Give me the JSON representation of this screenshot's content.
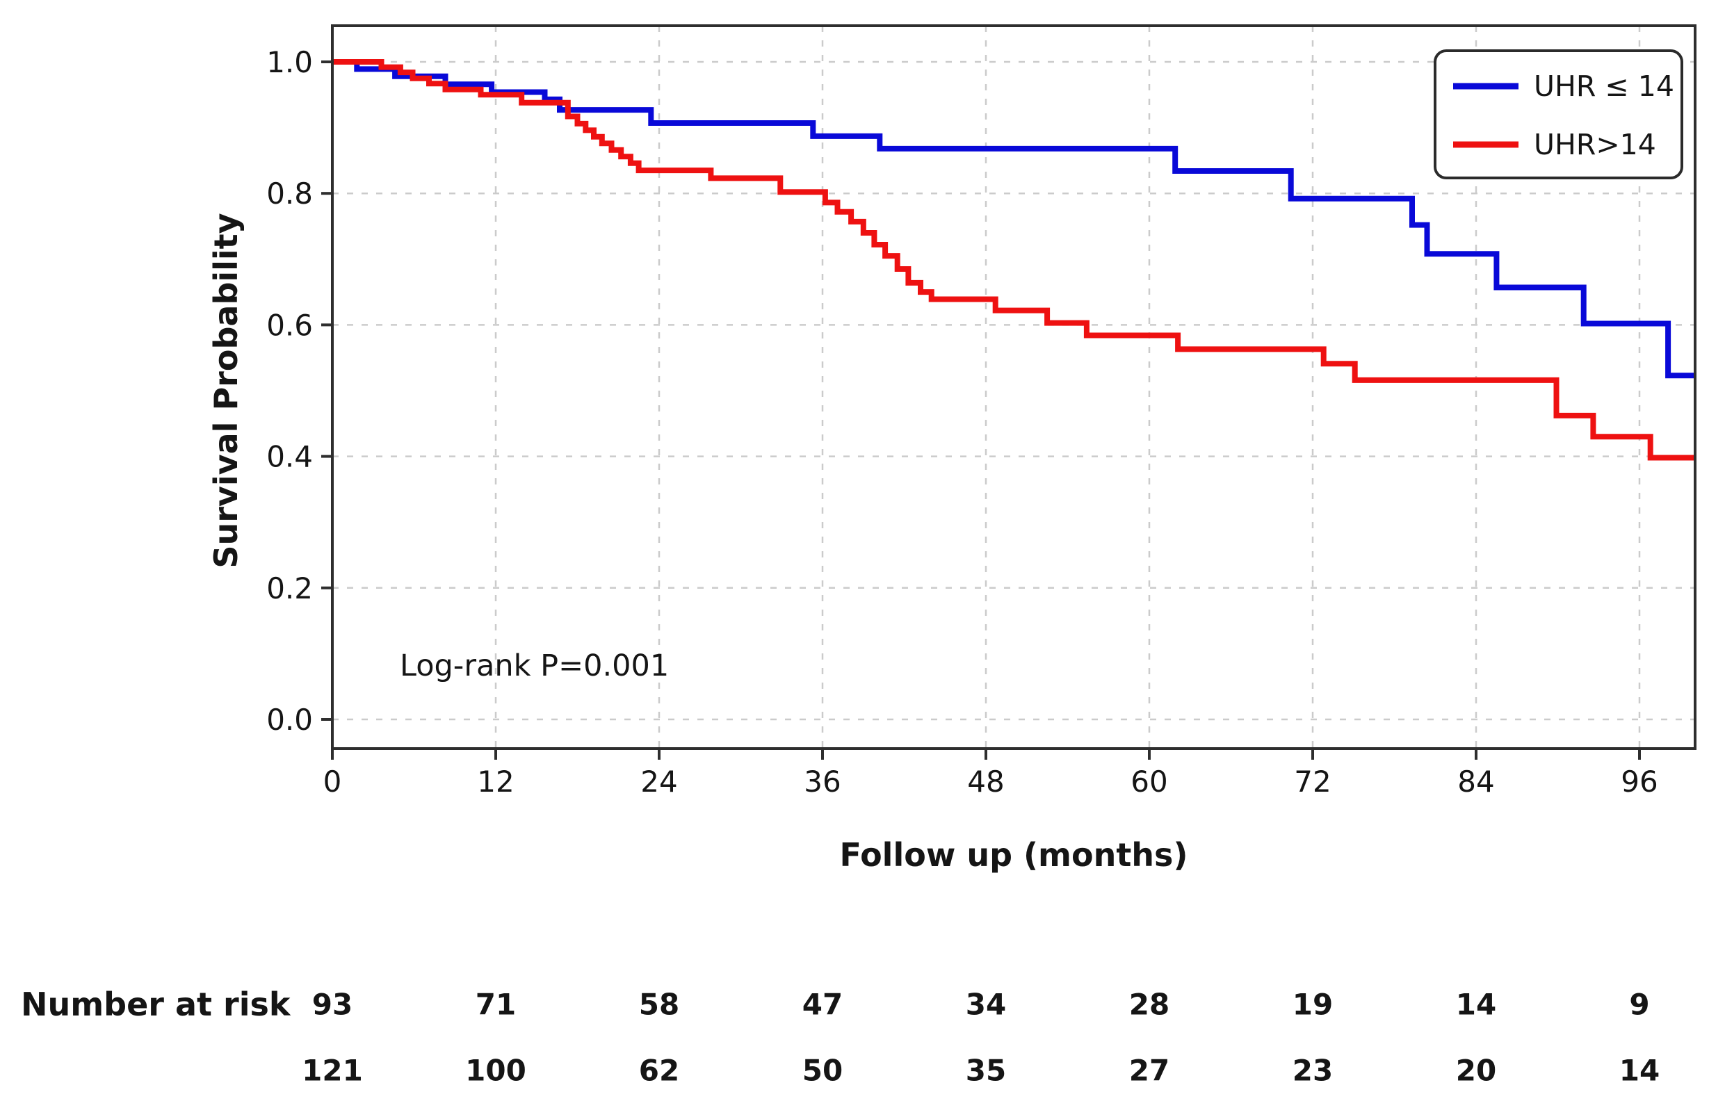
{
  "chart_data": {
    "type": "line",
    "subtype": "kaplan-meier-step",
    "title": "",
    "xlabel": "Follow up (months)",
    "ylabel": "Survival Probability",
    "annotation": "Log-rank P=0.001",
    "x_ticks": [
      0,
      12,
      24,
      36,
      48,
      60,
      72,
      84,
      96
    ],
    "y_ticks": [
      1.0,
      0.8,
      0.6,
      0.4,
      0.2,
      0.0
    ],
    "xlim": [
      0,
      100.1
    ],
    "ylim": [
      -0.045,
      1.055
    ],
    "grid": true,
    "legend_position": "upper right",
    "series": [
      {
        "name": "UHR ≤ 14",
        "color": "#0909d8",
        "steps": [
          [
            0,
            1.0
          ],
          [
            1.8,
            0.989
          ],
          [
            4.6,
            0.978
          ],
          [
            8.3,
            0.966
          ],
          [
            11.7,
            0.954
          ],
          [
            15.6,
            0.943
          ],
          [
            16.7,
            0.927
          ],
          [
            23.4,
            0.907
          ],
          [
            35.3,
            0.887
          ],
          [
            40.2,
            0.868
          ],
          [
            61.9,
            0.834
          ],
          [
            70.4,
            0.792
          ],
          [
            79.3,
            0.752
          ],
          [
            80.4,
            0.708
          ],
          [
            85.5,
            0.657
          ],
          [
            91.9,
            0.602
          ],
          [
            98.1,
            0.523
          ]
        ]
      },
      {
        "name": "UHR>14",
        "color": "#ee1111",
        "steps": [
          [
            0,
            1.0
          ],
          [
            3.6,
            0.992
          ],
          [
            5.0,
            0.984
          ],
          [
            5.9,
            0.975
          ],
          [
            7.1,
            0.967
          ],
          [
            8.3,
            0.958
          ],
          [
            10.9,
            0.95
          ],
          [
            13.9,
            0.938
          ],
          [
            17.3,
            0.917
          ],
          [
            18.0,
            0.906
          ],
          [
            18.6,
            0.896
          ],
          [
            19.2,
            0.886
          ],
          [
            19.8,
            0.876
          ],
          [
            20.5,
            0.866
          ],
          [
            21.2,
            0.856
          ],
          [
            21.9,
            0.846
          ],
          [
            22.5,
            0.835
          ],
          [
            27.8,
            0.823
          ],
          [
            32.9,
            0.802
          ],
          [
            36.2,
            0.786
          ],
          [
            37.1,
            0.772
          ],
          [
            38.1,
            0.757
          ],
          [
            39.0,
            0.74
          ],
          [
            39.8,
            0.722
          ],
          [
            40.6,
            0.705
          ],
          [
            41.5,
            0.685
          ],
          [
            42.3,
            0.664
          ],
          [
            43.2,
            0.65
          ],
          [
            44.0,
            0.639
          ],
          [
            48.7,
            0.622
          ],
          [
            52.5,
            0.603
          ],
          [
            55.4,
            0.584
          ],
          [
            62.1,
            0.563
          ],
          [
            72.8,
            0.541
          ],
          [
            75.1,
            0.516
          ],
          [
            89.9,
            0.462
          ],
          [
            92.6,
            0.43
          ],
          [
            96.8,
            0.398
          ]
        ]
      }
    ],
    "risk_table": {
      "label": "Number at risk",
      "times": [
        0,
        12,
        24,
        36,
        48,
        60,
        72,
        84,
        96
      ],
      "rows": [
        {
          "group": "UHR ≤ 14",
          "color": "#3434da",
          "values": [
            93,
            71,
            58,
            47,
            34,
            28,
            19,
            14,
            9
          ]
        },
        {
          "group": "UHR>14",
          "color": "#ee2222",
          "values": [
            121,
            100,
            62,
            50,
            35,
            27,
            23,
            20,
            14
          ]
        }
      ]
    },
    "style": {
      "grid_color": "#cbcbcb",
      "spine_color": "#2e2e2e",
      "text_color": "#151515"
    }
  }
}
